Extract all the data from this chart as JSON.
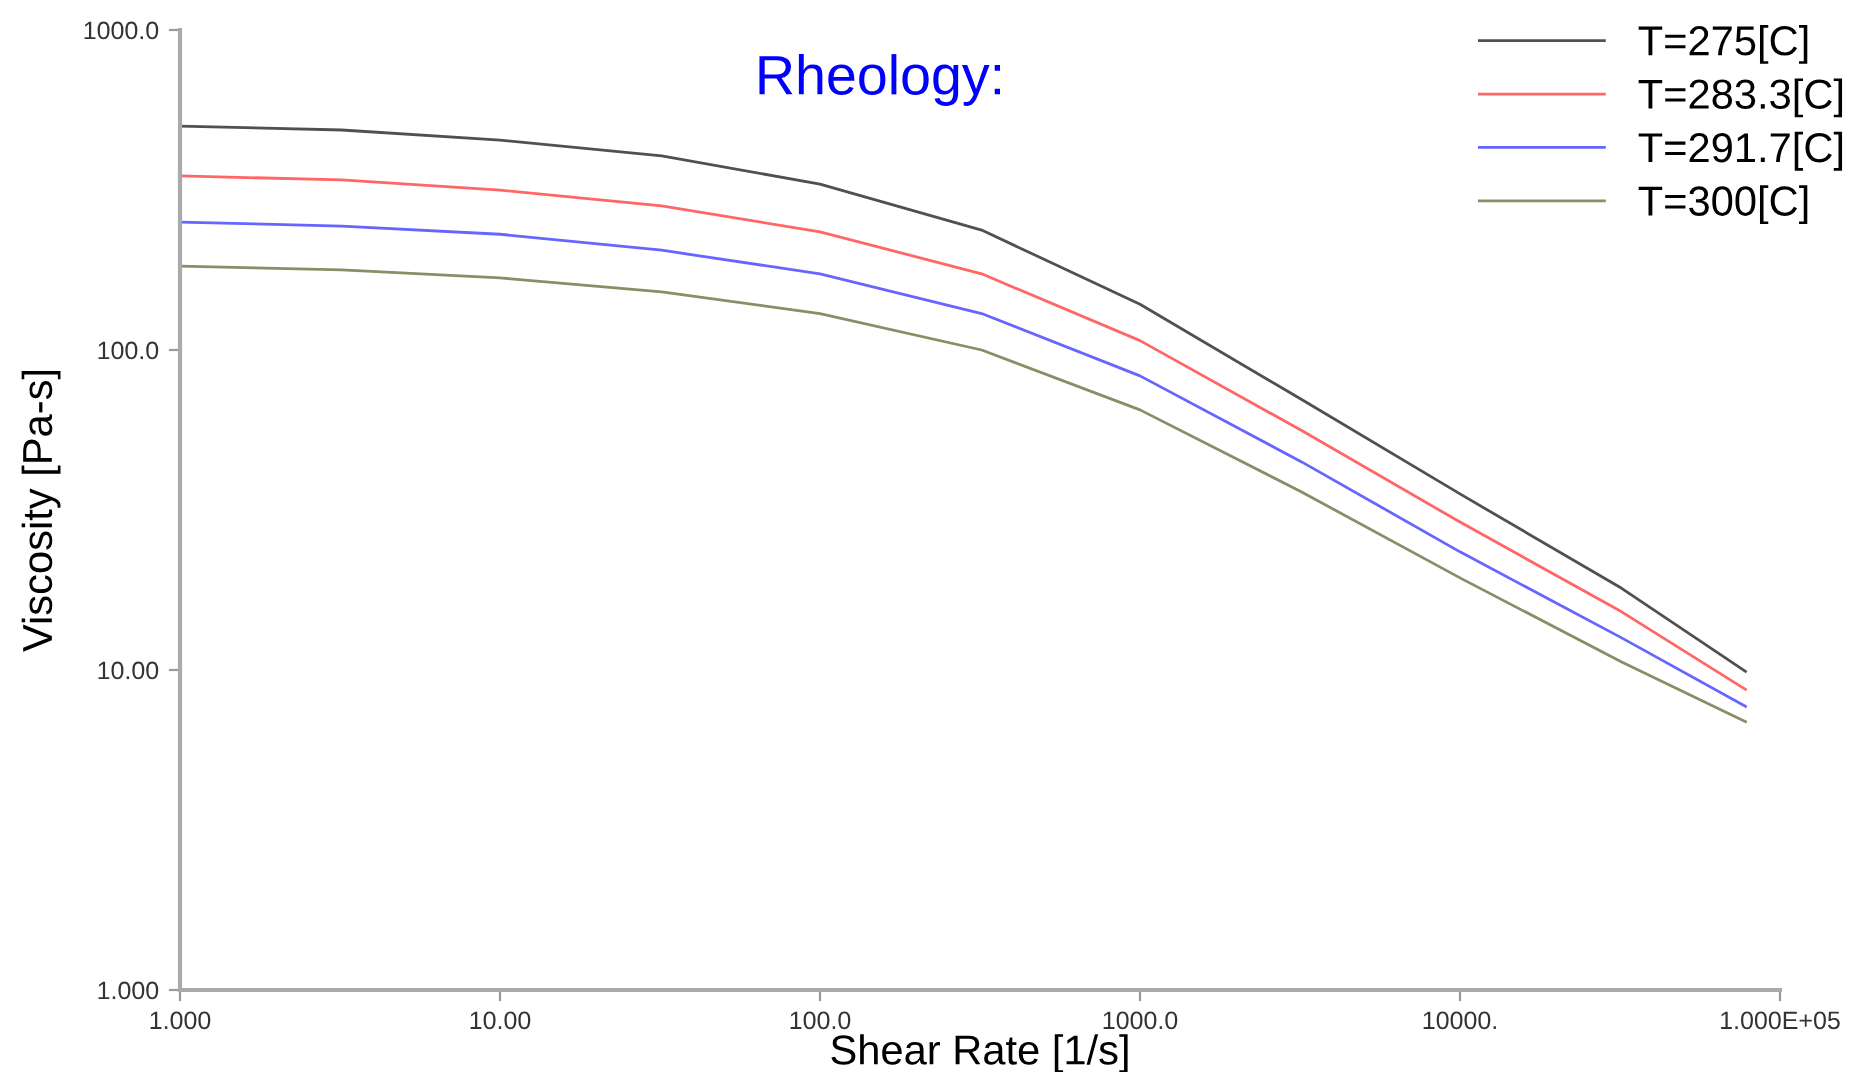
{
  "chart_data": {
    "type": "line",
    "title": "Rheology:",
    "xlabel": "Shear Rate [1/s]",
    "ylabel": "Viscosity [Pa-s]",
    "log": "xy",
    "legend": "top right",
    "grid": false,
    "marker": "none",
    "line_style": "solid",
    "xlim": [
      1,
      100000
    ],
    "ylim": [
      1,
      1000
    ],
    "xticks": [
      {
        "value": 1,
        "label": "1.000"
      },
      {
        "value": 10,
        "label": "10.00"
      },
      {
        "value": 100,
        "label": "100.0"
      },
      {
        "value": 1000,
        "label": "1000.0"
      },
      {
        "value": 10000,
        "label": "10000."
      },
      {
        "value": 100000,
        "label": "1.000E+05"
      }
    ],
    "yticks": [
      {
        "value": 1,
        "label": "1.000"
      },
      {
        "value": 10,
        "label": "10.00"
      },
      {
        "value": 100,
        "label": "100.0"
      },
      {
        "value": 1000,
        "label": "1000.0"
      }
    ],
    "x": [
      1,
      3.2,
      10,
      32,
      100,
      320,
      1000,
      3200,
      10000,
      32000,
      78000
    ],
    "series": [
      {
        "name": "T=275[C]",
        "color": "#505050",
        "values": [
          501,
          487,
          453,
          404,
          330,
          237,
          139,
          70,
          35.5,
          18.0,
          9.9
        ]
      },
      {
        "name": "T=283.3[C]",
        "color": "#ff6666",
        "values": [
          350,
          340,
          316,
          282,
          234,
          173,
          107,
          56,
          29.0,
          15.2,
          8.7
        ]
      },
      {
        "name": "T=291.7[C]",
        "color": "#6666ff",
        "values": [
          251,
          244,
          230,
          205,
          173,
          130,
          83,
          44.7,
          23.4,
          12.6,
          7.7
        ]
      },
      {
        "name": "T=300[C]",
        "color": "#8c8c66",
        "values": [
          183,
          178,
          168,
          152,
          130,
          100,
          65,
          36.0,
          19.4,
          10.6,
          6.9
        ]
      }
    ]
  }
}
